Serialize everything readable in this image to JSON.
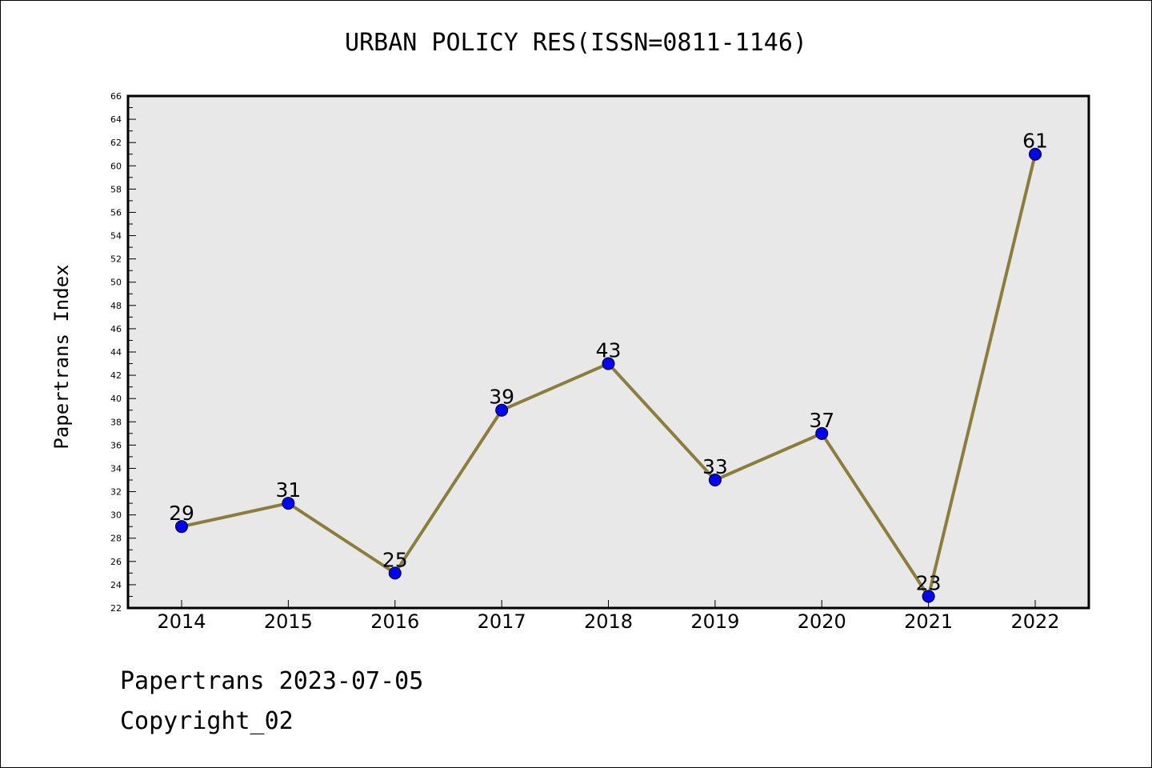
{
  "footer": {
    "line1": "Papertrans 2023-07-05",
    "line2": "Copyright_02"
  },
  "chart_data": {
    "type": "line",
    "title": "URBAN POLICY RES(ISSN=0811-1146)",
    "xlabel": "",
    "ylabel": "Papertrans Index",
    "categories": [
      "2014",
      "2015",
      "2016",
      "2017",
      "2018",
      "2019",
      "2020",
      "2021",
      "2022"
    ],
    "values": [
      29,
      31,
      25,
      39,
      43,
      33,
      37,
      23,
      61
    ],
    "ylim": [
      22,
      66
    ],
    "ytick_step": 2,
    "grid": false,
    "plot_background": "#e8e8e8",
    "line_color": "#8b7d3a",
    "marker_color": "#0000ff"
  }
}
